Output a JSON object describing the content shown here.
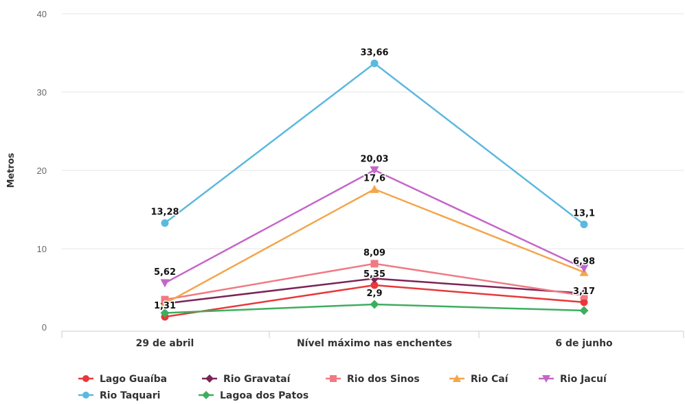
{
  "chart_data": {
    "type": "line",
    "title": "",
    "xlabel": "",
    "ylabel": "Metros",
    "ylim": [
      0,
      40
    ],
    "yticks": [
      0,
      10,
      20,
      30,
      40
    ],
    "grid": true,
    "legend_position": "bottom-left",
    "categories": [
      "29 de abril",
      "Nível máximo nas enchentes",
      "6 de junho"
    ],
    "series": [
      {
        "name": "Lago Guaíba",
        "color": "#e8383b",
        "marker": "circle",
        "values": [
          1.31,
          5.35,
          3.17
        ],
        "labels": [
          "1,31",
          "5,35",
          "3,17"
        ]
      },
      {
        "name": "Rio Gravataí",
        "color": "#7b2457",
        "marker": "diamond",
        "values": [
          3.0,
          6.2,
          4.3
        ],
        "labels": [
          "",
          "",
          ""
        ]
      },
      {
        "name": "Rio dos Sinos",
        "color": "#f07a84",
        "marker": "square",
        "values": [
          3.5,
          8.09,
          4.0
        ],
        "labels": [
          "",
          "8,09",
          ""
        ]
      },
      {
        "name": "Rio Caí",
        "color": "#f5a54a",
        "marker": "triangle-up",
        "values": [
          3.0,
          17.6,
          7.0
        ],
        "labels": [
          "",
          "17,6",
          ""
        ]
      },
      {
        "name": "Rio Jacuí",
        "color": "#c466c8",
        "marker": "triangle-down",
        "values": [
          5.62,
          20.03,
          7.5
        ],
        "labels": [
          "5,62",
          "20,03",
          ""
        ]
      },
      {
        "name": "Rio Taquari",
        "color": "#5bb8de",
        "marker": "circle",
        "values": [
          13.28,
          33.66,
          13.1
        ],
        "labels": [
          "13,28",
          "33,66",
          "13,1"
        ]
      },
      {
        "name": "Lagoa dos Patos",
        "color": "#3dae5e",
        "marker": "diamond",
        "values": [
          1.8,
          2.9,
          2.1
        ],
        "labels": [
          "",
          "2,9",
          ""
        ]
      }
    ],
    "extra_labels": [
      {
        "text": "6,98",
        "category_index": 2,
        "value": 6.98
      }
    ]
  }
}
